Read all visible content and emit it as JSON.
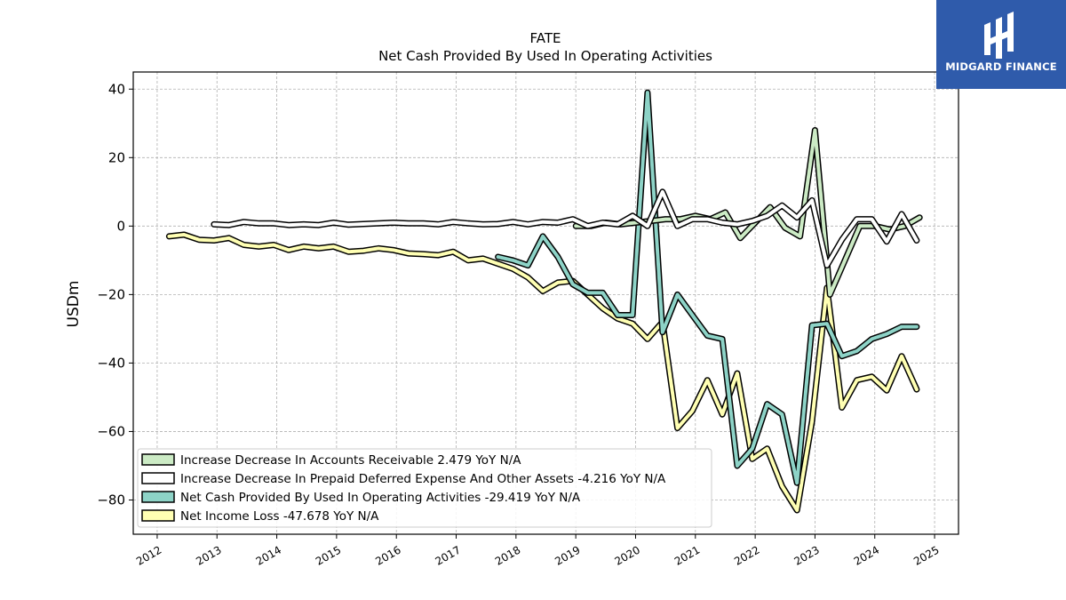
{
  "chart_data": {
    "type": "line",
    "title": "FATE",
    "subtitle": "Net Cash Provided By Used In Operating Activities",
    "ylabel": "USDm",
    "xlabel": "",
    "ylim": [
      -90,
      45
    ],
    "xlim": [
      2011.6,
      2025.4
    ],
    "yticks": [
      40,
      20,
      0,
      -20,
      -40,
      -60,
      -80
    ],
    "ytick_labels": [
      "40",
      "20",
      "0",
      "−20",
      "−40",
      "−60",
      "−80"
    ],
    "xticks": [
      2012,
      2013,
      2014,
      2015,
      2016,
      2017,
      2018,
      2019,
      2020,
      2021,
      2022,
      2023,
      2024,
      2025
    ],
    "xtick_labels": [
      "2012",
      "2013",
      "2014",
      "2015",
      "2016",
      "2017",
      "2018",
      "2019",
      "2020",
      "2021",
      "2022",
      "2023",
      "2024",
      "2025"
    ],
    "grid": true,
    "legend_position": "lower-left",
    "series": [
      {
        "name": "Net Income Loss",
        "legend_label": "Net Income Loss  -47.678 YoY N/A",
        "color": "#ffffb3",
        "x": [
          2012.2,
          2012.45,
          2012.7,
          2012.95,
          2013.2,
          2013.45,
          2013.7,
          2013.95,
          2014.2,
          2014.45,
          2014.7,
          2014.95,
          2015.2,
          2015.45,
          2015.7,
          2015.95,
          2016.2,
          2016.45,
          2016.7,
          2016.95,
          2017.2,
          2017.45,
          2017.7,
          2017.95,
          2018.2,
          2018.45,
          2018.7,
          2018.95,
          2019.2,
          2019.45,
          2019.7,
          2019.95,
          2020.2,
          2020.45,
          2020.7,
          2020.95,
          2021.2,
          2021.45,
          2021.7,
          2021.95,
          2022.2,
          2022.45,
          2022.7,
          2022.95,
          2023.2,
          2023.45,
          2023.7,
          2023.95,
          2024.2,
          2024.45,
          2024.7
        ],
        "y": [
          -3,
          -2.5,
          -4,
          -4.2,
          -3.5,
          -5.5,
          -6,
          -5.5,
          -7,
          -6,
          -6.5,
          -6,
          -7.5,
          -7.2,
          -6.5,
          -7,
          -8,
          -8.2,
          -8.5,
          -7.5,
          -10,
          -9.5,
          -11,
          -12.5,
          -15,
          -19,
          -16.5,
          -16,
          -20,
          -24,
          -27,
          -28.5,
          -33,
          -28,
          -59,
          -54,
          -45,
          -55,
          -43,
          -68,
          -65,
          -76,
          -83,
          -57,
          -18,
          -53,
          -45,
          -44,
          -48,
          -38,
          -47.7
        ]
      },
      {
        "name": "Net Cash Provided By Used In Operating Activities",
        "legend_label": "Net Cash Provided By Used In Operating Activities  -29.419 YoY N/A",
        "color": "#8dd3c7",
        "x": [
          2017.7,
          2017.95,
          2018.2,
          2018.45,
          2018.7,
          2018.95,
          2019.2,
          2019.45,
          2019.7,
          2019.95,
          2020.2,
          2020.45,
          2020.7,
          2020.95,
          2021.2,
          2021.45,
          2021.7,
          2021.95,
          2022.2,
          2022.45,
          2022.7,
          2022.95,
          2023.2,
          2023.45,
          2023.7,
          2023.95,
          2024.2,
          2024.45,
          2024.7
        ],
        "y": [
          -9,
          -10,
          -11.5,
          -3,
          -9,
          -17,
          -19.5,
          -19.5,
          -26,
          -26,
          39,
          -31,
          -20,
          -26,
          -32,
          -33,
          -70,
          -65,
          -52,
          -55,
          -75,
          -29,
          -28.5,
          -38,
          -36.5,
          -33,
          -31.5,
          -29.4,
          -29.4
        ]
      },
      {
        "name": "Increase Decrease In Accounts Receivable",
        "legend_label": "Increase Decrease In Accounts Receivable  2.479 YoY N/A",
        "color": "#ccebc5",
        "x": [
          2019.0,
          2019.25,
          2019.5,
          2019.75,
          2020.0,
          2020.25,
          2020.5,
          2020.75,
          2021.0,
          2021.25,
          2021.5,
          2021.75,
          2022.0,
          2022.25,
          2022.5,
          2022.75,
          2023.0,
          2023.25,
          2023.5,
          2023.75,
          2024.0,
          2024.25,
          2024.5,
          2024.75
        ],
        "y": [
          0,
          0,
          1,
          0.5,
          1,
          1.5,
          2,
          2,
          3,
          2,
          4,
          -3.5,
          1,
          5.5,
          -0.5,
          -3,
          28,
          -20,
          -10,
          0,
          0,
          -1,
          0,
          2.5
        ]
      },
      {
        "name": "Increase Decrease In Prepaid Deferred Expense And Other Assets",
        "legend_label": "Increase Decrease In Prepaid Deferred Expense And Other Assets  -4.216 YoY N/A",
        "color": "#ffffff",
        "x": [
          2012.95,
          2013.2,
          2013.45,
          2013.7,
          2013.95,
          2014.2,
          2014.45,
          2014.7,
          2014.95,
          2015.2,
          2015.45,
          2015.7,
          2015.95,
          2016.2,
          2016.45,
          2016.7,
          2016.95,
          2017.2,
          2017.45,
          2017.7,
          2017.95,
          2018.2,
          2018.45,
          2018.7,
          2018.95,
          2019.2,
          2019.45,
          2019.7,
          2019.95,
          2020.2,
          2020.45,
          2020.7,
          2020.95,
          2021.2,
          2021.45,
          2021.7,
          2021.95,
          2022.2,
          2022.45,
          2022.7,
          2022.95,
          2023.2,
          2023.45,
          2023.7,
          2023.95,
          2024.2,
          2024.45,
          2024.7
        ],
        "y": [
          0.5,
          0.3,
          1.2,
          0.8,
          0.8,
          0.3,
          0.5,
          0.3,
          1,
          0.4,
          0.6,
          0.8,
          1,
          0.8,
          0.8,
          0.5,
          1.2,
          0.8,
          0.5,
          0.6,
          1.2,
          0.5,
          1.2,
          1,
          2,
          0,
          1,
          0.5,
          3,
          0,
          10,
          0,
          2,
          2,
          1,
          0.5,
          1.5,
          3,
          6,
          2.5,
          7.5,
          -11.5,
          -4,
          2,
          2,
          -4.5,
          3.5,
          -4.2
        ]
      }
    ]
  },
  "logo": {
    "text": "MIDGARD FINANCE",
    "background": "#2f5bab",
    "text_color": "#ffffff"
  }
}
